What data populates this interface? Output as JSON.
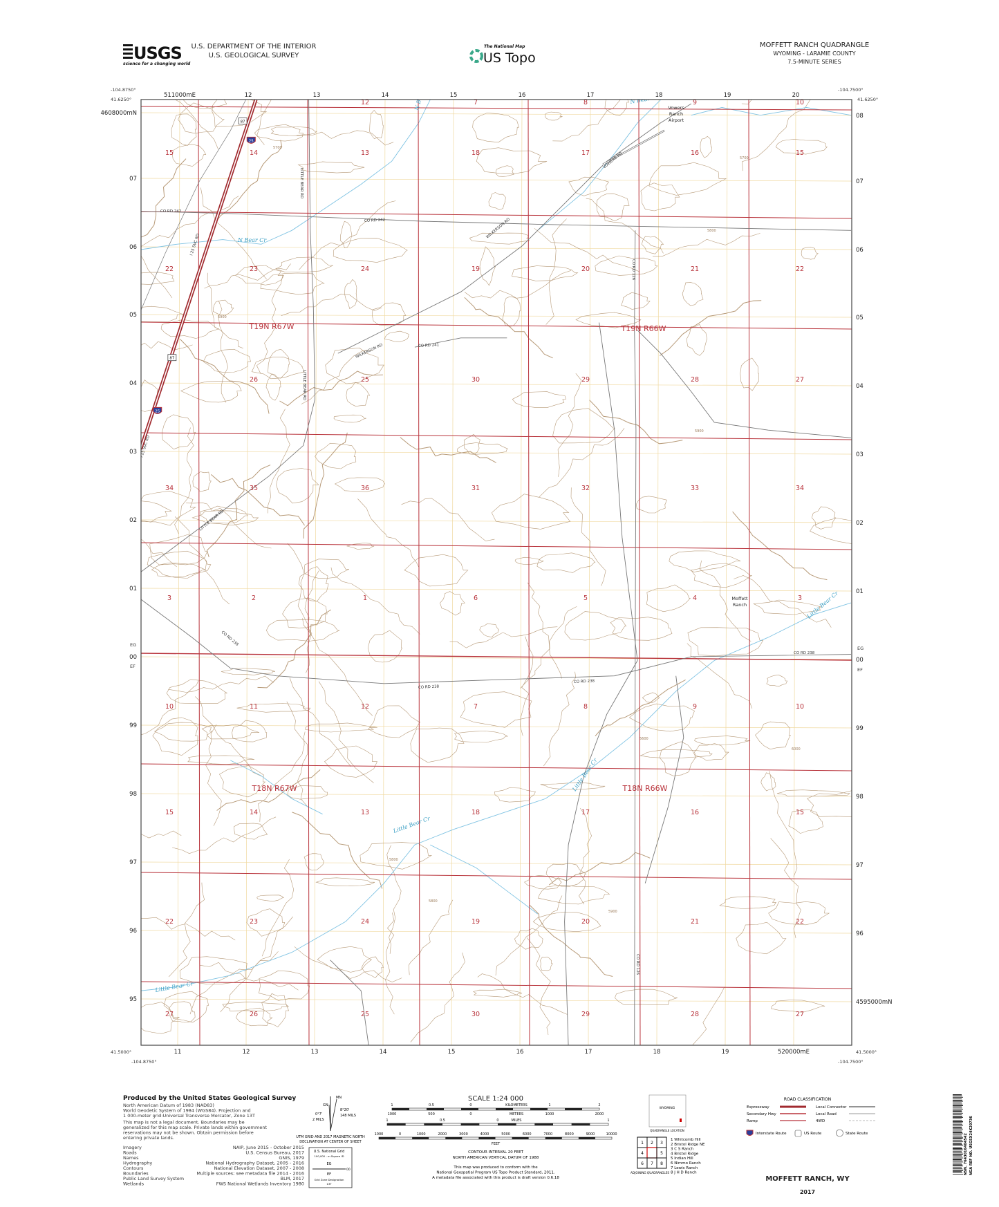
{
  "header": {
    "agency_logo": "USGS",
    "agency_tagline": "science for a changing world",
    "department": "U.S. DEPARTMENT OF THE INTERIOR",
    "survey": "U.S. GEOLOGICAL SURVEY",
    "national_map": "The National Map",
    "product": "US Topo",
    "quad_title": "MOFFETT RANCH QUADRANGLE",
    "state_county": "WYOMING - LARAMIE COUNTY",
    "series": "7.5-MINUTE SERIES"
  },
  "map": {
    "corners": {
      "nw_lon": "-104.8750°",
      "nw_lat": "41.6250°",
      "ne_lon": "-104.7500°",
      "ne_lat": "41.6250°",
      "sw_lon": "-104.8750°",
      "sw_lat": "41.5000°",
      "se_lon": "-104.7500°",
      "se_lat": "41.5000°"
    },
    "eastings_top": [
      "511000mE",
      "12",
      "13",
      "14",
      "15",
      "16",
      "17",
      "18",
      "19",
      "20"
    ],
    "eastings_bottom": [
      "11",
      "12",
      "13",
      "14",
      "15",
      "16",
      "17",
      "18",
      "19",
      "520000mE"
    ],
    "northings_left": [
      "4608000mN",
      "07",
      "06",
      "05",
      "04",
      "03",
      "02",
      "01",
      "00",
      "99",
      "98",
      "97",
      "96",
      "95"
    ],
    "northings_right": [
      "08",
      "07",
      "06",
      "05",
      "04",
      "03",
      "02",
      "01",
      "00",
      "99",
      "98",
      "97",
      "96",
      "4595000mN"
    ],
    "grid_zone_left": [
      "EG",
      "EF"
    ],
    "grid_zone_right": [
      "EG",
      "EF"
    ],
    "sections": [
      [
        "",
        "",
        "12",
        "7",
        "8",
        "9",
        "10"
      ],
      [
        "15",
        "14",
        "13",
        "18",
        "17",
        "16",
        "15"
      ],
      [
        "22",
        "23",
        "24",
        "19",
        "20",
        "21",
        "22"
      ],
      [
        "",
        "26",
        "25",
        "30",
        "29",
        "28",
        "27"
      ],
      [
        "34",
        "35",
        "36",
        "31",
        "32",
        "33",
        "34"
      ],
      [
        "3",
        "2",
        "1",
        "6",
        "5",
        "4",
        "3"
      ],
      [
        "10",
        "11",
        "12",
        "7",
        "8",
        "9",
        "10"
      ],
      [
        "15",
        "14",
        "13",
        "18",
        "17",
        "16",
        "15"
      ],
      [
        "22",
        "23",
        "24",
        "19",
        "20",
        "21",
        "22"
      ],
      [
        "27",
        "26",
        "25",
        "30",
        "29",
        "28",
        "27"
      ]
    ],
    "townships": [
      "T19N R67W",
      "T19N R66W",
      "T18N R67W",
      "T18N R66W"
    ],
    "places": [
      "Vowers",
      "Ranch",
      "Airport",
      "Moffett",
      "Ranch"
    ],
    "streams": [
      "N Bear Cr",
      "N Bear Cr",
      "N Bear Cr",
      "Little Bear Cr",
      "Little Bear Cr",
      "Little Bear Cr",
      "Little Bear Cr"
    ],
    "roads": [
      "CO RD 242",
      "CO RD 242",
      "WILKERSON RD",
      "VOWERS RD",
      "LITTLE BEAR RD",
      "CO RD 126",
      "CO RD 241",
      "WILKERSON RD",
      "LITTLE BEAR RD",
      "I 25 SVC RD",
      "I 25 SVC RD",
      "LITTLE BEAR RD",
      "CO RD 238",
      "CO RD 238",
      "CO RD 238",
      "CO RD 238",
      "CO RD 126"
    ],
    "route_shields": [
      "87",
      "25",
      "87",
      "25"
    ],
    "contour_values": [
      "5700",
      "5800",
      "5900",
      "5600",
      "5800",
      "5900",
      "6000",
      "5800",
      "5700",
      "5900"
    ],
    "colors": {
      "plss": "#b8323a",
      "contour": "#b79a78",
      "water": "#7fc3e3",
      "utm_grid": "#f0d9a0",
      "road": "#777777",
      "interstate": "#a12a2f"
    }
  },
  "footer": {
    "produced_by": "Produced by the United States Geological Survey",
    "datum_lines": [
      "North American Datum of 1983 (NAD83)",
      "World Geodetic System of 1984 (WGS84). Projection and",
      "1 000-meter grid:Universal Transverse Mercator, Zone 13T",
      "This map is not a legal document. Boundaries may be",
      "generalized for this map scale. Private lands within government",
      "reservations may not be shown. Obtain permission before",
      "entering private lands."
    ],
    "sources": [
      {
        "name": "Imagery",
        "value": "NAIP, June 2015 - October 2015"
      },
      {
        "name": "Roads",
        "value": "U.S. Census Bureau, 2017"
      },
      {
        "name": "Names",
        "value": "GNIS, 1979"
      },
      {
        "name": "Hydrography",
        "value": "National Hydrography Dataset, 2005 - 2016"
      },
      {
        "name": "Contours",
        "value": "National Elevation Dataset, 2007 - 2008"
      },
      {
        "name": "Boundaries",
        "value": "Multiple sources; see metadata file 2014 - 2016"
      },
      {
        "name": "Public Land Survey System",
        "value": "BLM, 2017"
      },
      {
        "name": "Wetlands",
        "value": "FWS National Wetlands Inventory 1980"
      }
    ],
    "declination": {
      "mn": "MN",
      "gn": "GN",
      "angle1": "8°20'",
      "mils1": "148 MILS",
      "angle2": "0°7'",
      "mils2": "2 MILS",
      "caption1": "UTM GRID AND 2017 MAGNETIC NORTH",
      "caption2": "DECLINATION AT CENTER OF SHEET"
    },
    "usng": {
      "title": "U.S. National Grid",
      "subtitle": "100,000 - m Square ID",
      "top": "EG",
      "bottom": "EF",
      "line_value": "00",
      "zone_label": "Grid Zone Designation",
      "zone": "13T"
    },
    "scale": {
      "title": "SCALE 1:24 000",
      "km_labels": [
        "1",
        "0.5",
        "0",
        "KILOMETERS",
        "1",
        "2"
      ],
      "m_labels": [
        "1000",
        "500",
        "0",
        "METERS",
        "1000",
        "2000"
      ],
      "mi_labels": [
        "1",
        "0.5",
        "0",
        "MILES",
        "1"
      ],
      "ft_labels": [
        "1000",
        "0",
        "1000",
        "2000",
        "3000",
        "4000",
        "5000",
        "6000",
        "7000",
        "8000",
        "9000",
        "10000"
      ],
      "ft_unit": "FEET"
    },
    "contour_interval": "CONTOUR INTERVAL 20 FEET",
    "vertical_datum": "NORTH AMERICAN VERTICAL DATUM OF 1988",
    "conform_lines": [
      "This map was produced to conform with the",
      "National Geospatial Program US Topo Product Standard, 2011.",
      "A metadata file associated with this product is draft version 0.6.18"
    ],
    "locator": {
      "state": "WYOMING",
      "caption": "QUADRANGLE LOCATION"
    },
    "adjoining": {
      "cells": [
        "1",
        "2",
        "3",
        "4",
        "",
        "5",
        "6",
        "7",
        "8"
      ],
      "names": [
        "1 Whitcomb Hill",
        "2 Bristol Ridge NE",
        "3 C S Ranch",
        "4 Bristol Ridge",
        "5 Indian Hill",
        "6 Nimmo Ranch",
        "7 Lewis Ranch",
        "8 J H D Ranch"
      ],
      "caption": "ADJOINING QUADRANGLES"
    },
    "road_class": {
      "title": "ROAD CLASSIFICATION",
      "items": [
        "Expressway",
        "Secondary Hwy",
        "Ramp",
        "Local Connector",
        "Local Road",
        "4WD"
      ],
      "shields": [
        "Interstate Route",
        "US Route",
        "State Route"
      ]
    },
    "map_name": "MOFFETT RANCH, WY",
    "year": "2017",
    "barcode_text": "NSN. 7643016404542",
    "nga_ref": "NGA REF NO. USGSX24K29736"
  }
}
